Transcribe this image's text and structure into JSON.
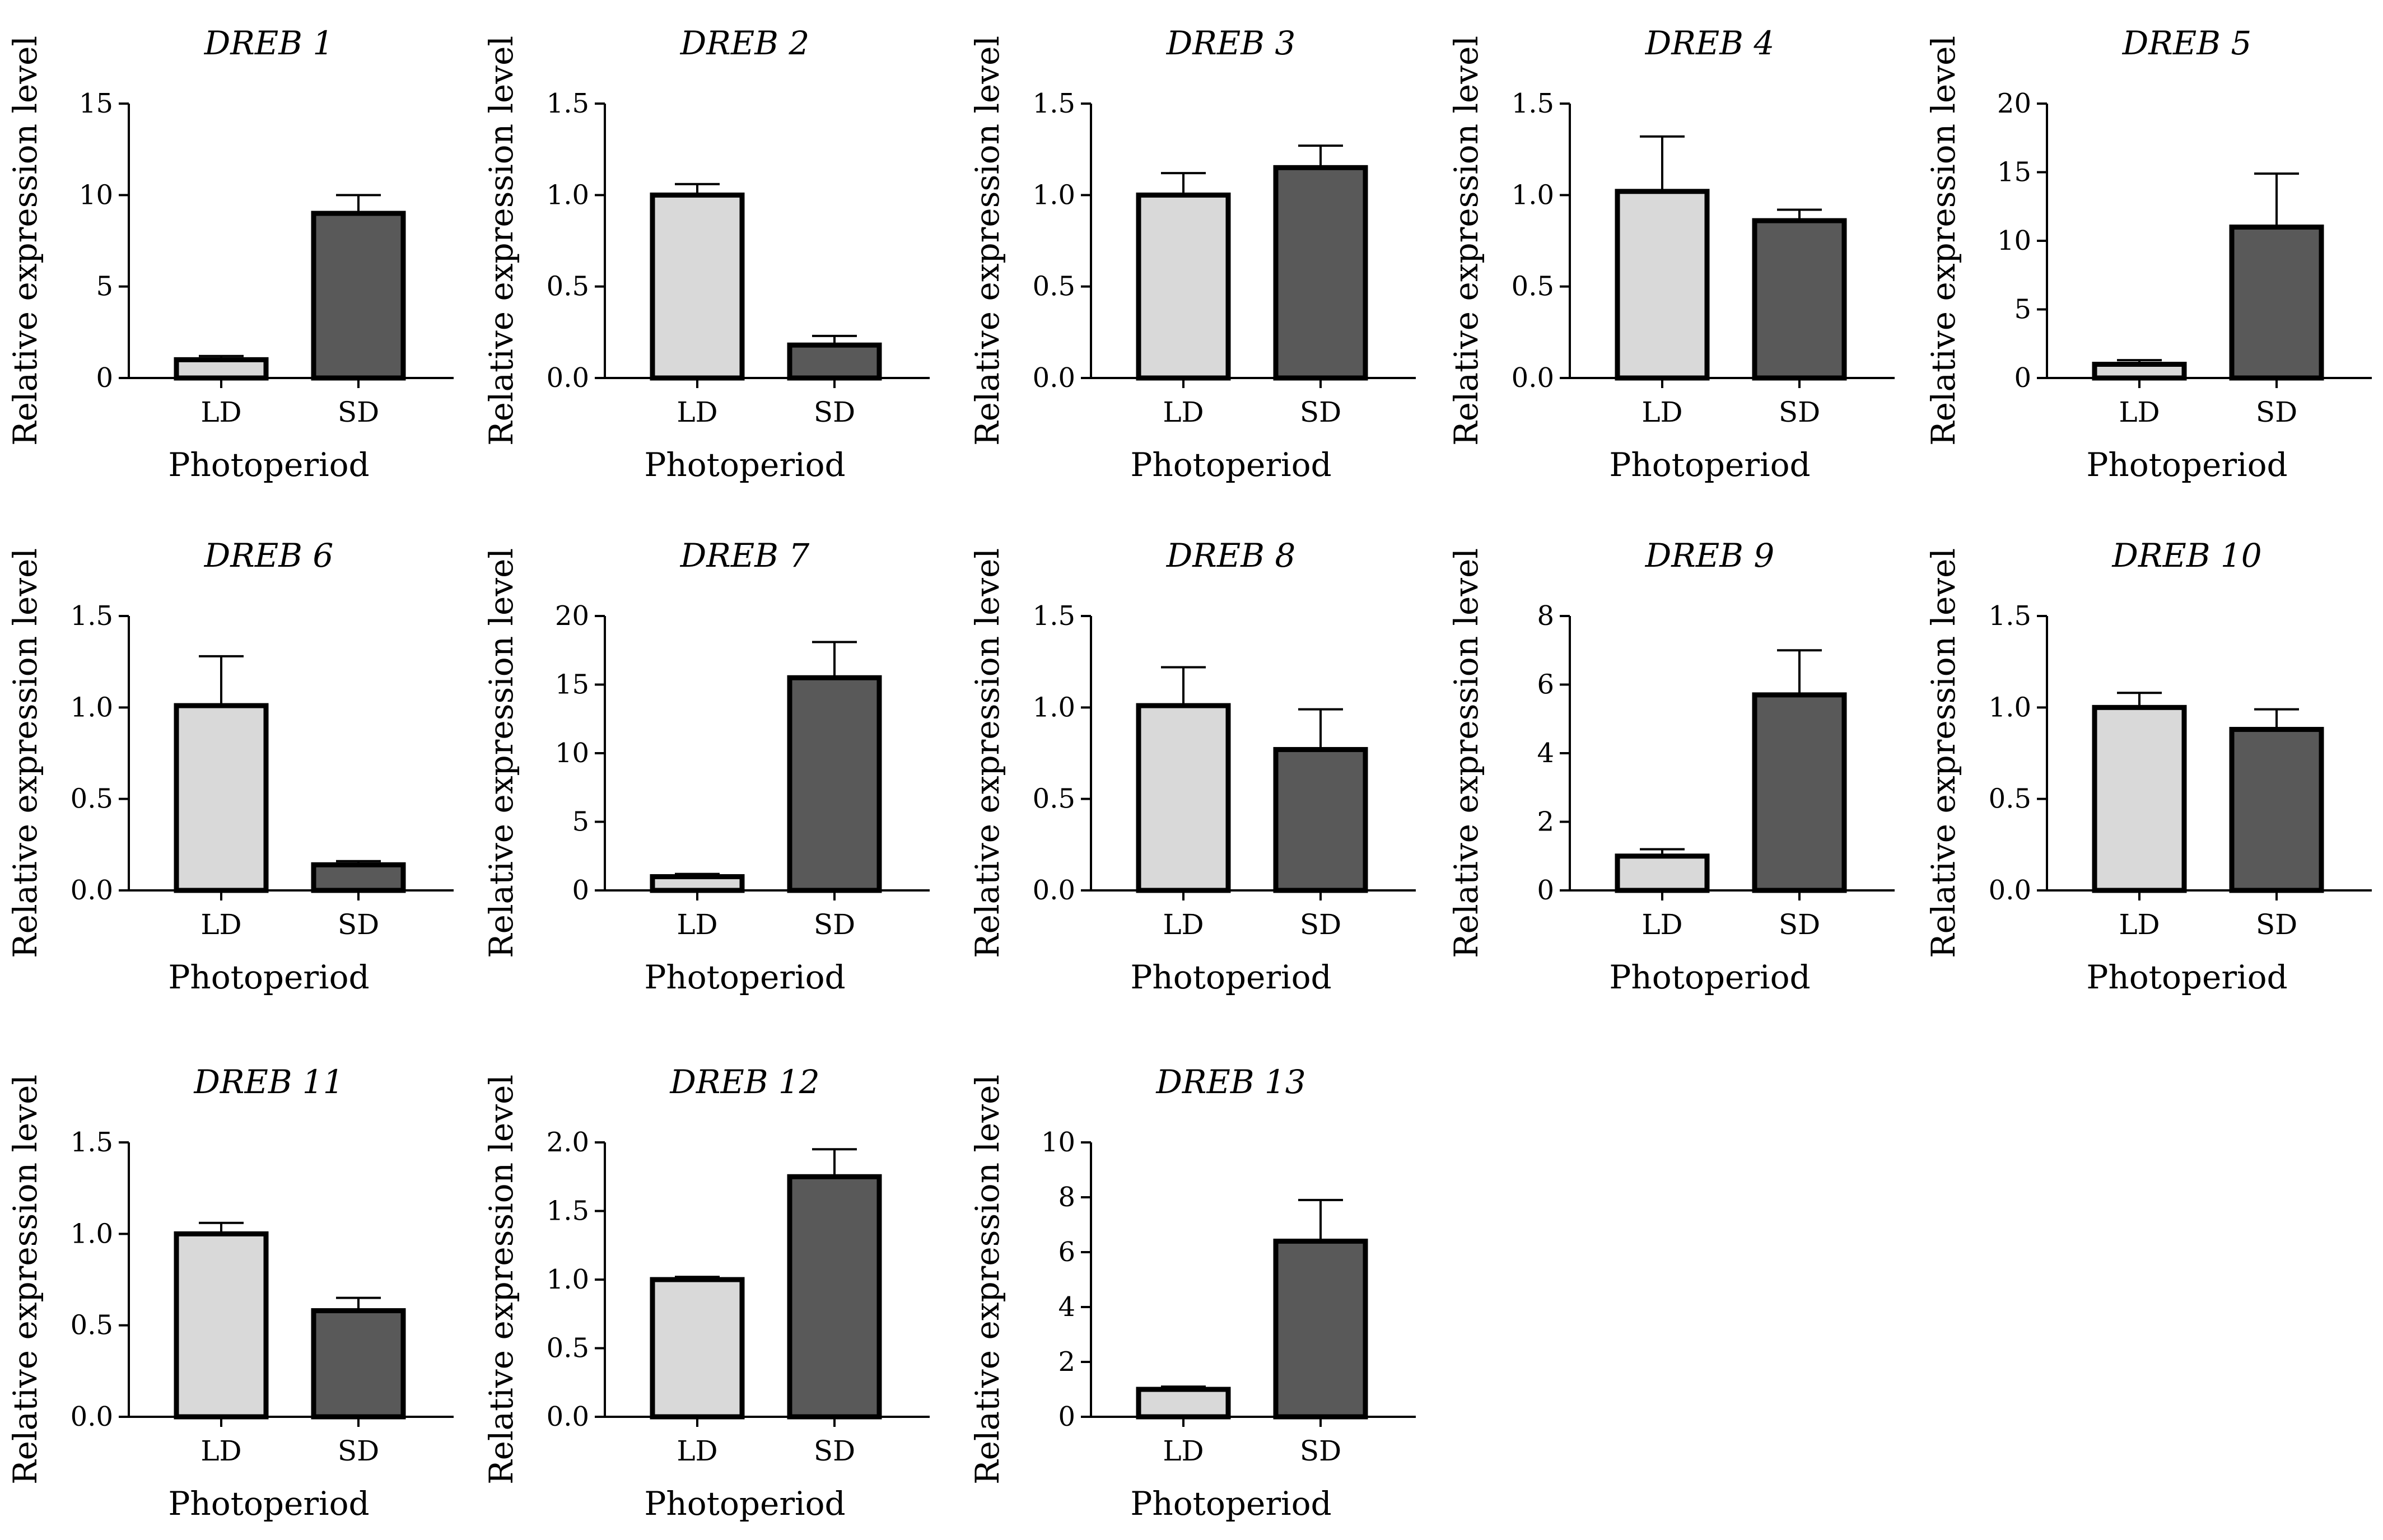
{
  "figure": {
    "colors": {
      "LD": "#d9d9d9",
      "SD": "#595959",
      "outline": "#000000"
    }
  },
  "chart_data": [
    {
      "type": "bar",
      "title": "DREB 1",
      "xlabel": "Photoperiod",
      "ylabel": "Relative expression level",
      "categories": [
        "LD",
        "SD"
      ],
      "values": [
        1.0,
        9.0
      ],
      "errors": [
        0.2,
        1.0
      ],
      "ylim": [
        0,
        15
      ],
      "yticks": [
        0,
        5,
        10,
        15
      ],
      "ytick_labels": [
        "0",
        "5",
        "10",
        "15"
      ]
    },
    {
      "type": "bar",
      "title": "DREB 2",
      "xlabel": "Photoperiod",
      "ylabel": "Relative expression level",
      "categories": [
        "LD",
        "SD"
      ],
      "values": [
        1.0,
        0.18
      ],
      "errors": [
        0.06,
        0.05
      ],
      "ylim": [
        0,
        1.5
      ],
      "yticks": [
        0,
        0.5,
        1.0,
        1.5
      ],
      "ytick_labels": [
        "0.0",
        "0.5",
        "1.0",
        "1.5"
      ]
    },
    {
      "type": "bar",
      "title": "DREB 3",
      "xlabel": "Photoperiod",
      "ylabel": "Relative expression level",
      "categories": [
        "LD",
        "SD"
      ],
      "values": [
        1.0,
        1.15
      ],
      "errors": [
        0.12,
        0.12
      ],
      "ylim": [
        0,
        1.5
      ],
      "yticks": [
        0,
        0.5,
        1.0,
        1.5
      ],
      "ytick_labels": [
        "0.0",
        "0.5",
        "1.0",
        "1.5"
      ]
    },
    {
      "type": "bar",
      "title": "DREB 4",
      "xlabel": "Photoperiod",
      "ylabel": "Relative expression level",
      "categories": [
        "LD",
        "SD"
      ],
      "values": [
        1.02,
        0.86
      ],
      "errors": [
        0.3,
        0.06
      ],
      "ylim": [
        0,
        1.5
      ],
      "yticks": [
        0,
        0.5,
        1.0,
        1.5
      ],
      "ytick_labels": [
        "0.0",
        "0.5",
        "1.0",
        "1.5"
      ]
    },
    {
      "type": "bar",
      "title": "DREB 5",
      "xlabel": "Photoperiod",
      "ylabel": "Relative expression level",
      "categories": [
        "LD",
        "SD"
      ],
      "values": [
        1.0,
        11.0
      ],
      "errors": [
        0.3,
        3.9
      ],
      "ylim": [
        0,
        20
      ],
      "yticks": [
        0,
        5,
        10,
        15,
        20
      ],
      "ytick_labels": [
        "0",
        "5",
        "10",
        "15",
        "20"
      ]
    },
    {
      "type": "bar",
      "title": "DREB 6",
      "xlabel": "Photoperiod",
      "ylabel": "Relative expression level",
      "categories": [
        "LD",
        "SD"
      ],
      "values": [
        1.01,
        0.14
      ],
      "errors": [
        0.27,
        0.02
      ],
      "ylim": [
        0,
        1.5
      ],
      "yticks": [
        0,
        0.5,
        1.0,
        1.5
      ],
      "ytick_labels": [
        "0.0",
        "0.5",
        "1.0",
        "1.5"
      ]
    },
    {
      "type": "bar",
      "title": "DREB 7",
      "xlabel": "Photoperiod",
      "ylabel": "Relative expression level",
      "categories": [
        "LD",
        "SD"
      ],
      "values": [
        1.0,
        15.5
      ],
      "errors": [
        0.2,
        2.6
      ],
      "ylim": [
        0,
        20
      ],
      "yticks": [
        0,
        5,
        10,
        15,
        20
      ],
      "ytick_labels": [
        "0",
        "5",
        "10",
        "15",
        "20"
      ]
    },
    {
      "type": "bar",
      "title": "DREB 8",
      "xlabel": "Photoperiod",
      "ylabel": "Relative expression level",
      "categories": [
        "LD",
        "SD"
      ],
      "values": [
        1.01,
        0.77
      ],
      "errors": [
        0.21,
        0.22
      ],
      "ylim": [
        0,
        1.5
      ],
      "yticks": [
        0,
        0.5,
        1.0,
        1.5
      ],
      "ytick_labels": [
        "0.0",
        "0.5",
        "1.0",
        "1.5"
      ]
    },
    {
      "type": "bar",
      "title": "DREB 9",
      "xlabel": "Photoperiod",
      "ylabel": "Relative expression level",
      "categories": [
        "LD",
        "SD"
      ],
      "values": [
        1.0,
        5.7
      ],
      "errors": [
        0.2,
        1.3
      ],
      "ylim": [
        0,
        8
      ],
      "yticks": [
        0,
        2,
        4,
        6,
        8
      ],
      "ytick_labels": [
        "0",
        "2",
        "4",
        "6",
        "8"
      ]
    },
    {
      "type": "bar",
      "title": "DREB 10",
      "xlabel": "Photoperiod",
      "ylabel": "Relative expression level",
      "categories": [
        "LD",
        "SD"
      ],
      "values": [
        1.0,
        0.88
      ],
      "errors": [
        0.08,
        0.11
      ],
      "ylim": [
        0,
        1.5
      ],
      "yticks": [
        0,
        0.5,
        1.0,
        1.5
      ],
      "ytick_labels": [
        "0.0",
        "0.5",
        "1.0",
        "1.5"
      ]
    },
    {
      "type": "bar",
      "title": "DREB 11",
      "xlabel": "Photoperiod",
      "ylabel": "Relative expression level",
      "categories": [
        "LD",
        "SD"
      ],
      "values": [
        1.0,
        0.58
      ],
      "errors": [
        0.06,
        0.07
      ],
      "ylim": [
        0,
        1.5
      ],
      "yticks": [
        0,
        0.5,
        1.0,
        1.5
      ],
      "ytick_labels": [
        "0.0",
        "0.5",
        "1.0",
        "1.5"
      ]
    },
    {
      "type": "bar",
      "title": "DREB 12",
      "xlabel": "Photoperiod",
      "ylabel": "Relative expression level",
      "categories": [
        "LD",
        "SD"
      ],
      "values": [
        1.0,
        1.75
      ],
      "errors": [
        0.02,
        0.2
      ],
      "ylim": [
        0,
        2.0
      ],
      "yticks": [
        0,
        0.5,
        1.0,
        1.5,
        2.0
      ],
      "ytick_labels": [
        "0.0",
        "0.5",
        "1.0",
        "1.5",
        "2.0"
      ]
    },
    {
      "type": "bar",
      "title": "DREB 13",
      "xlabel": "Photoperiod",
      "ylabel": "Relative expression level",
      "categories": [
        "LD",
        "SD"
      ],
      "values": [
        1.0,
        6.4
      ],
      "errors": [
        0.1,
        1.5
      ],
      "ylim": [
        0,
        10
      ],
      "yticks": [
        0,
        2,
        4,
        6,
        8,
        10
      ],
      "ytick_labels": [
        "0",
        "2",
        "4",
        "6",
        "8",
        "10"
      ]
    }
  ]
}
